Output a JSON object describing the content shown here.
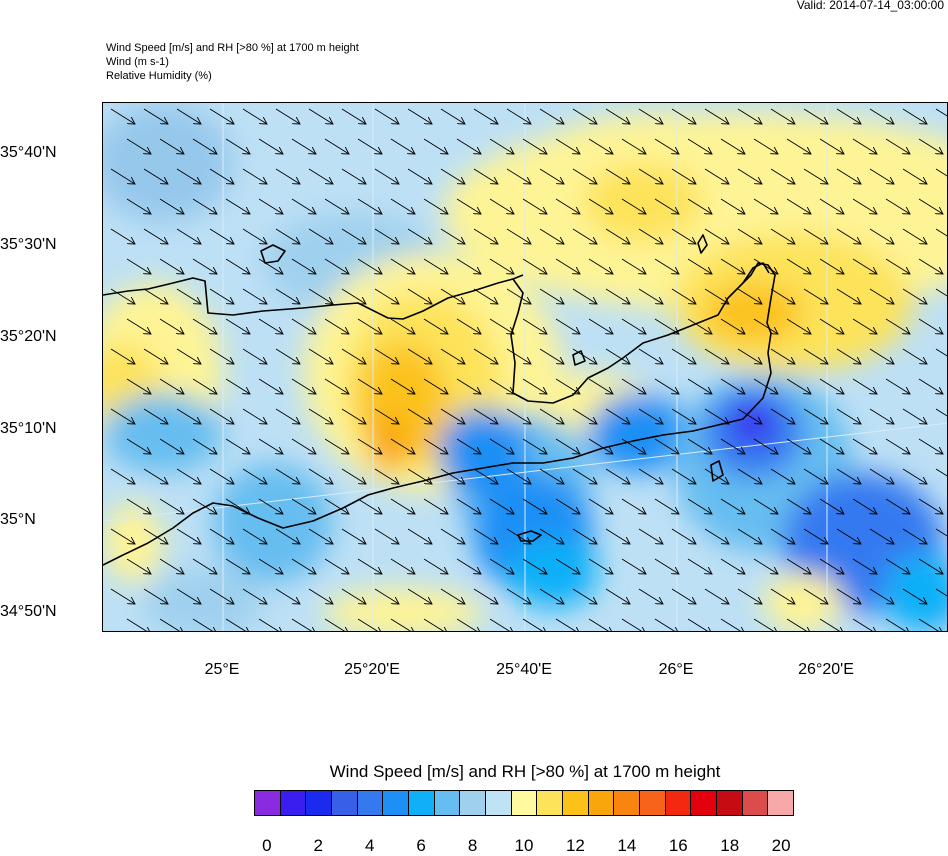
{
  "valid_time": "Valid: 2014-07-14_03:00:00",
  "titles": {
    "line1": "Wind Speed [m/s] and RH [>80 %] at 1700 m height",
    "line2": "Wind   (m s-1)",
    "line3": "Relative Humidity   (%)"
  },
  "map": {
    "lat_labels": [
      "35°40'N",
      "35°30'N",
      "35°20'N",
      "35°10'N",
      "35°N",
      "34°50'N"
    ],
    "lon_labels": [
      "25°E",
      "25°20'E",
      "25°40'E",
      "26°E",
      "26°20'E"
    ],
    "wind_direction": "north-west to south-east",
    "colors": {
      "low_wind": "#bde0f5",
      "calm_blue": "#96c8ec",
      "jet_blue": "#2a6ff0",
      "high_yellow": "#fef496",
      "high_orange": "#f8b21e",
      "coast": "#000000"
    }
  },
  "colorbar": {
    "title": "Wind Speed [m/s] and RH [>80 %] at 1700 m height",
    "labels": [
      "0",
      "2",
      "4",
      "6",
      "8",
      "10",
      "12",
      "14",
      "16",
      "18",
      "20"
    ],
    "colors": [
      "#8a2be2",
      "#3a1ef0",
      "#1a2bef",
      "#3660e8",
      "#3579f0",
      "#1d8ff5",
      "#10b0f8",
      "#66bdf0",
      "#9fd0ee",
      "#bfe3f5",
      "#fff9a0",
      "#fde35a",
      "#fcc21a",
      "#f9a60d",
      "#f98410",
      "#f7631b",
      "#f22810",
      "#e1000c",
      "#c70b12",
      "#dd4c4c",
      "#f7a9a9"
    ]
  }
}
